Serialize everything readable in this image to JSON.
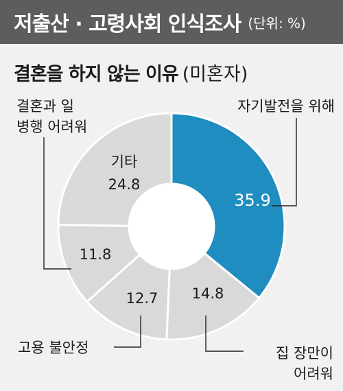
{
  "header": {
    "title": "저출산 · 고령사회 인식조사",
    "unit": "(단위: %)"
  },
  "subtitle": {
    "main": "결혼을 하지 않는 이유",
    "paren": "(미혼자)"
  },
  "chart_data": {
    "type": "pie",
    "style": "donut",
    "unit": "%",
    "slices": [
      {
        "label": "자기발전을 위해",
        "value": 35.9,
        "value_text": "35.9",
        "color": "#1f8dbf"
      },
      {
        "label": "집 장만이 어려워",
        "value": 14.8,
        "value_text": "14.8",
        "color": "#d9d9d9"
      },
      {
        "label": "고용 불안정",
        "value": 12.7,
        "value_text": "12.7",
        "color": "#d9d9d9"
      },
      {
        "label": "결혼과 일 병행 어려워",
        "value": 11.8,
        "value_text": "11.8",
        "color": "#d9d9d9"
      },
      {
        "label": "기타",
        "value": 24.8,
        "value_text": "24.8",
        "color": "#d9d9d9"
      }
    ],
    "callouts": {
      "s0": [
        "자기발전을 위해"
      ],
      "s1": [
        "집 장만이",
        "어려워"
      ],
      "s2": [
        "고용 불안정"
      ],
      "s3": [
        "결혼과 일",
        "병행 어려워"
      ],
      "s4": [
        "기타"
      ]
    }
  }
}
